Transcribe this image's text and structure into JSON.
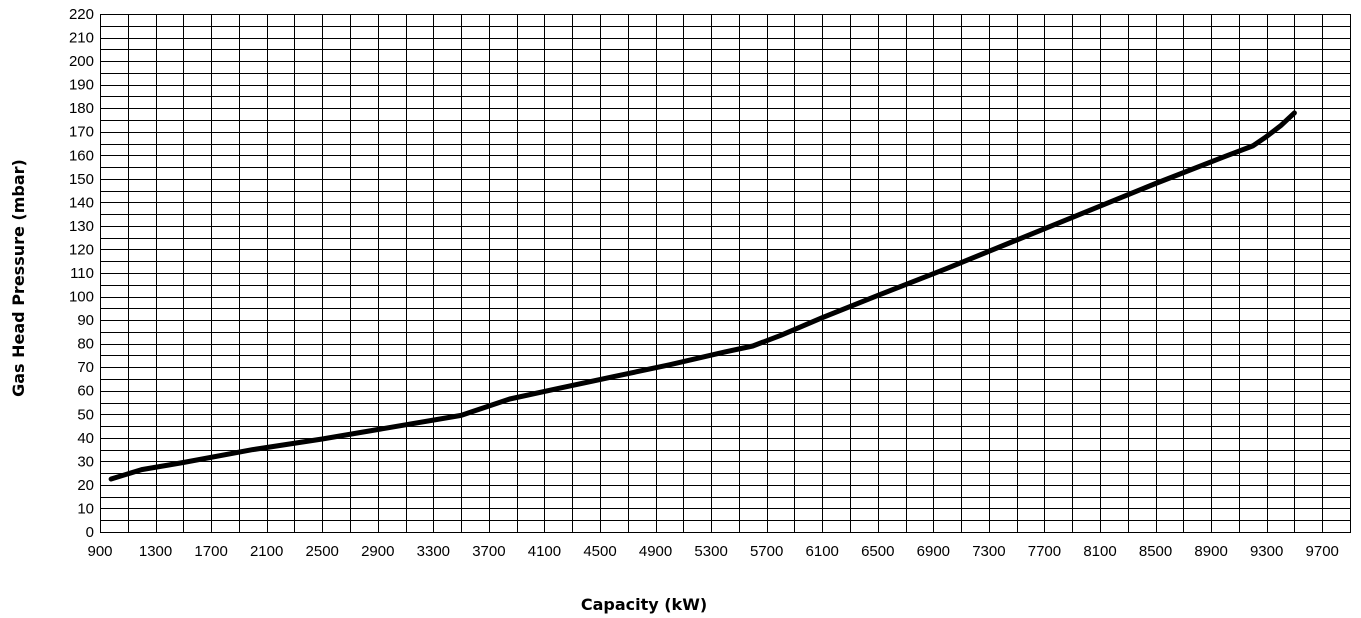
{
  "chart_data": {
    "type": "line",
    "title": "",
    "xlabel": "Capacity (kW)",
    "ylabel": "Gas Head Pressure (mbar)",
    "xlim": [
      900,
      9900
    ],
    "ylim": [
      0,
      220
    ],
    "grid": true,
    "x_minor_step": 200,
    "y_minor_step": 5,
    "x_ticks": [
      "900",
      "1300",
      "1700",
      "2100",
      "2500",
      "2900",
      "3300",
      "3700",
      "4100",
      "4500",
      "4900",
      "5300",
      "5700",
      "6100",
      "6500",
      "6900",
      "7300",
      "7700",
      "8100",
      "8500",
      "8900",
      "9300",
      "9700"
    ],
    "y_ticks": [
      "0",
      "10",
      "20",
      "30",
      "40",
      "50",
      "60",
      "70",
      "80",
      "90",
      "100",
      "110",
      "120",
      "130",
      "140",
      "150",
      "160",
      "170",
      "180",
      "190",
      "200",
      "210",
      "220"
    ],
    "series": [
      {
        "color": "#000000",
        "x": [
          980,
          1200,
          1500,
          2000,
          2500,
          3000,
          3500,
          3650,
          3850,
          4200,
          4600,
          5000,
          5400,
          5600,
          5800,
          6100,
          6500,
          7000,
          7500,
          8000,
          8500,
          9000,
          9200,
          9300,
          9400,
          9500
        ],
        "y": [
          22.5,
          26.5,
          29.5,
          35,
          39.5,
          44.5,
          49.5,
          52.5,
          56.5,
          61,
          66,
          71,
          76.5,
          79,
          83.5,
          91,
          100.5,
          112,
          124,
          136,
          148,
          159.5,
          164,
          168,
          172.5,
          178
        ]
      }
    ]
  }
}
